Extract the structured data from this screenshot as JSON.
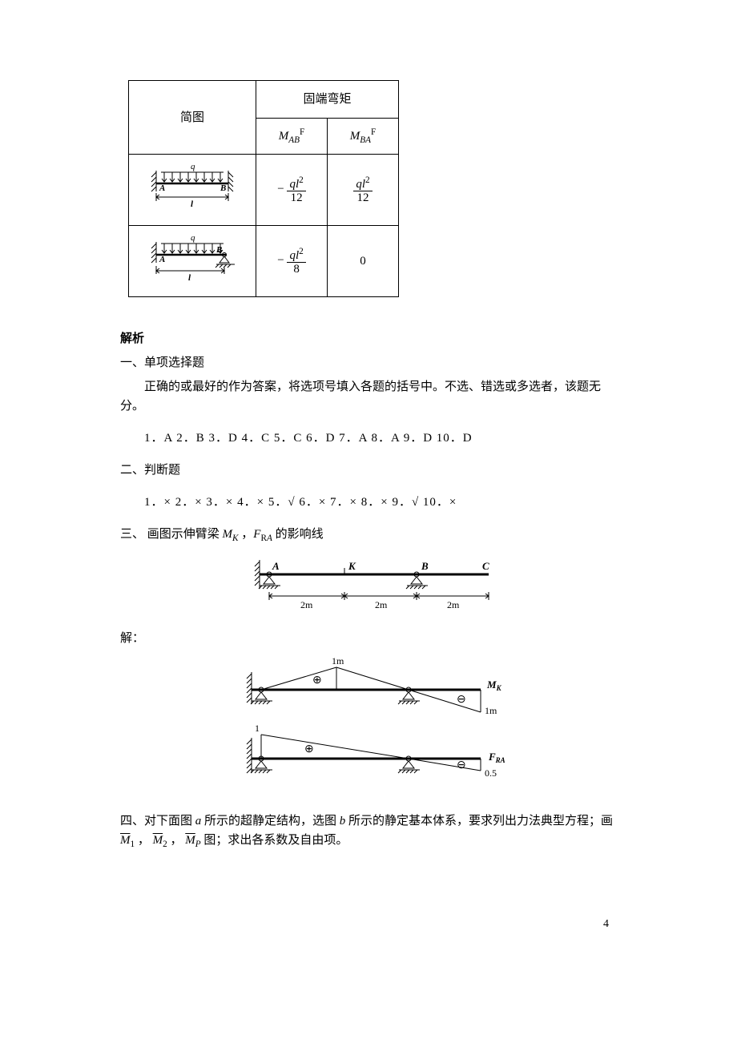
{
  "table": {
    "hdr_diagram": "简图",
    "hdr_moment": "固端弯矩",
    "hdr_mab_html": "<span class='it'>M</span><span class='sub'><span class='it'>AB</span></span><span class='sup'>F</span>",
    "hdr_mba_html": "<span class='it'>M</span><span class='sub'><span class='it'>BA</span></span><span class='sup'>F</span>",
    "r1_mab_html": "&minus;&nbsp;<span class='frac'><span class='num'><span class='it'>ql</span><span class='sup'>2</span></span><span class='den'>12</span></span>",
    "r1_mba_html": "<span class='frac'><span class='num'><span class='it'>ql</span><span class='sup'>2</span></span><span class='den'>12</span></span>",
    "r2_mab_html": "&minus;&nbsp;<span class='frac'><span class='num'><span class='it'>ql</span><span class='sup'>2</span></span><span class='den'>8</span></span>",
    "r2_mba": "0",
    "beam": {
      "q": "q",
      "A": "A",
      "B": "B",
      "l": "l"
    }
  },
  "solutions": {
    "title": "解析",
    "s1_title": "一、单项选择题",
    "s1_intro": "正确的或最好的作为答案，将选项号填入各题的括号中。不选、错选或多选者，该题无分。",
    "s1_answers": "1．A  2．B   3．D   4．C   5．C   6．D   7．A   8．A   9．D   10．D",
    "s2_title": "二、判断题",
    "s2_answers": "1．×  2．×  3．× 4．×  5．√   6．×  7．×  8．×  9．√  10．×",
    "s3_title_html": "三、  画图示伸臂梁 <span class='it'>M</span><span class='sub it'>K</span> ，<span class='it'>F</span><span class='sub'>R<span class='it'>A</span></span> 的影响线",
    "s3_sol": "解：",
    "beam3": {
      "A": "A",
      "K": "K",
      "B": "B",
      "C": "C",
      "d1": "2m",
      "d2": "2m",
      "d3": "2m"
    },
    "infl": {
      "mk": "M",
      "mk_sub": "K",
      "v1": "1m",
      "v2": "1m",
      "fra": "F",
      "fra_sub": "RA",
      "one": "1",
      "half": "0.5",
      "plus": "⊕",
      "minus": "⊖"
    },
    "s4_html": "四、对下面图 <span class='it'>a</span> 所示的超静定结构，选图 <span class='it'>b</span> 所示的静定基本体系，要求列出力法典型方程；画 <span class='overline it'>M</span><span class='sub'>1</span> ， <span class='overline it'>M</span><span class='sub'>2</span> ， <span class='overline it'>M</span><span class='sub it'>P</span> 图；求出各系数及自由项。"
  },
  "page": "4"
}
